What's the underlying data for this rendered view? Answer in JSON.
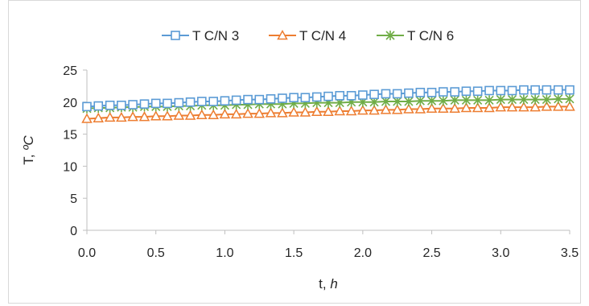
{
  "chart_data": {
    "type": "line",
    "title": "",
    "xlabel_main": "t, ",
    "xlabel_italic": "h",
    "ylabel_main": "T, ",
    "ylabel_italic": "ºC",
    "xlim": [
      0.0,
      3.5
    ],
    "ylim": [
      0,
      25
    ],
    "x_ticks": [
      "0.0",
      "0.5",
      "1.0",
      "1.5",
      "2.0",
      "2.5",
      "3.0",
      "3.5"
    ],
    "y_ticks": [
      "0",
      "5",
      "10",
      "15",
      "20",
      "25"
    ],
    "grid": "none",
    "legend_position": "top",
    "series": [
      {
        "name": "T C/N 3",
        "color": "#5b9bd5",
        "marker": "square",
        "x": [
          0.0,
          0.083,
          0.167,
          0.25,
          0.333,
          0.417,
          0.5,
          0.583,
          0.667,
          0.75,
          0.833,
          0.917,
          1.0,
          1.083,
          1.167,
          1.25,
          1.333,
          1.417,
          1.5,
          1.583,
          1.667,
          1.75,
          1.833,
          1.917,
          2.0,
          2.083,
          2.167,
          2.25,
          2.333,
          2.417,
          2.5,
          2.583,
          2.667,
          2.75,
          2.833,
          2.917,
          3.0,
          3.083,
          3.167,
          3.25,
          3.333,
          3.417,
          3.5
        ],
        "y": [
          19.3,
          19.4,
          19.5,
          19.5,
          19.6,
          19.7,
          19.8,
          19.8,
          19.9,
          20.0,
          20.1,
          20.1,
          20.2,
          20.3,
          20.4,
          20.4,
          20.5,
          20.6,
          20.7,
          20.7,
          20.8,
          20.9,
          21.0,
          21.0,
          21.1,
          21.2,
          21.3,
          21.3,
          21.4,
          21.5,
          21.5,
          21.6,
          21.6,
          21.7,
          21.7,
          21.8,
          21.8,
          21.8,
          21.9,
          21.9,
          21.9,
          21.9,
          21.9
        ]
      },
      {
        "name": "T C/N 4",
        "color": "#ed7d31",
        "marker": "triangle",
        "x": [
          0.0,
          0.083,
          0.167,
          0.25,
          0.333,
          0.417,
          0.5,
          0.583,
          0.667,
          0.75,
          0.833,
          0.917,
          1.0,
          1.083,
          1.167,
          1.25,
          1.333,
          1.417,
          1.5,
          1.583,
          1.667,
          1.75,
          1.833,
          1.917,
          2.0,
          2.083,
          2.167,
          2.25,
          2.333,
          2.417,
          2.5,
          2.583,
          2.667,
          2.75,
          2.833,
          2.917,
          3.0,
          3.083,
          3.167,
          3.25,
          3.333,
          3.417,
          3.5
        ],
        "y": [
          17.4,
          17.5,
          17.6,
          17.6,
          17.7,
          17.7,
          17.8,
          17.8,
          17.9,
          17.9,
          18.0,
          18.0,
          18.1,
          18.1,
          18.2,
          18.2,
          18.3,
          18.3,
          18.4,
          18.4,
          18.5,
          18.5,
          18.6,
          18.6,
          18.7,
          18.7,
          18.8,
          18.8,
          18.9,
          18.9,
          19.0,
          19.0,
          19.0,
          19.1,
          19.1,
          19.1,
          19.2,
          19.2,
          19.2,
          19.2,
          19.3,
          19.3,
          19.3
        ]
      },
      {
        "name": "T C/N 6",
        "color": "#70ad47",
        "marker": "star",
        "x": [
          0.0,
          0.083,
          0.167,
          0.25,
          0.333,
          0.417,
          0.5,
          0.583,
          0.667,
          0.75,
          0.833,
          0.917,
          1.0,
          1.083,
          1.167,
          1.25,
          1.333,
          1.417,
          1.5,
          1.583,
          1.667,
          1.75,
          1.833,
          1.917,
          2.0,
          2.083,
          2.167,
          2.25,
          2.333,
          2.417,
          2.5,
          2.583,
          2.667,
          2.75,
          2.833,
          2.917,
          3.0,
          3.083,
          3.167,
          3.25,
          3.333,
          3.417,
          3.5
        ],
        "y": [
          19.0,
          19.1,
          19.1,
          19.2,
          19.2,
          19.3,
          19.3,
          19.3,
          19.4,
          19.4,
          19.5,
          19.5,
          19.5,
          19.6,
          19.6,
          19.7,
          19.7,
          19.7,
          19.8,
          19.8,
          19.9,
          19.9,
          19.9,
          20.0,
          20.0,
          20.0,
          20.1,
          20.1,
          20.1,
          20.2,
          20.2,
          20.2,
          20.3,
          20.3,
          20.3,
          20.3,
          20.4,
          20.4,
          20.4,
          20.4,
          20.4,
          20.5,
          20.5
        ]
      }
    ]
  }
}
